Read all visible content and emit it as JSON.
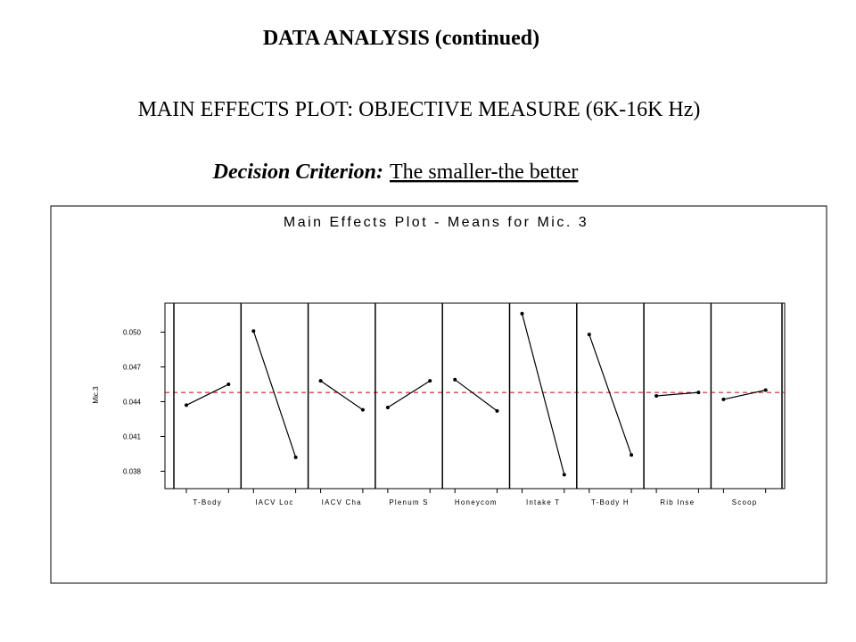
{
  "slide": {
    "title": "DATA ANALYSIS (continued)",
    "subtitle": "MAIN EFFECTS PLOT: OBJECTIVE MEASURE (6K-16K Hz)",
    "criterion_label": "Decision Criterion:",
    "criterion_value": "The smaller-the better"
  },
  "chart_data": {
    "type": "main-effects",
    "title": "Main Effects Plot - Means for Mic. 3",
    "y_label": "Mic.3",
    "categories": [
      "T-Body",
      "IACV Loc",
      "IACV Cha",
      "Plenum S",
      "Honeycom",
      "Intake T",
      "T-Body H",
      "Rib Inse",
      "Scoop"
    ],
    "values": [
      [
        0.0437,
        0.0455
      ],
      [
        0.0501,
        0.0392
      ],
      [
        0.0458,
        0.0433
      ],
      [
        0.0435,
        0.0458
      ],
      [
        0.0459,
        0.0432
      ],
      [
        0.0516,
        0.0377
      ],
      [
        0.0498,
        0.0394
      ],
      [
        0.0445,
        0.0448
      ],
      [
        0.0442,
        0.045
      ]
    ],
    "reference_line": 0.0448,
    "color": "#000000",
    "reference_color": "#cc0000",
    "ylim": [
      0.0365,
      0.0525
    ],
    "yticks": [
      0.038,
      0.041,
      0.044,
      0.047,
      {
        "value": 0.05,
        "label": "0.050"
      }
    ]
  }
}
